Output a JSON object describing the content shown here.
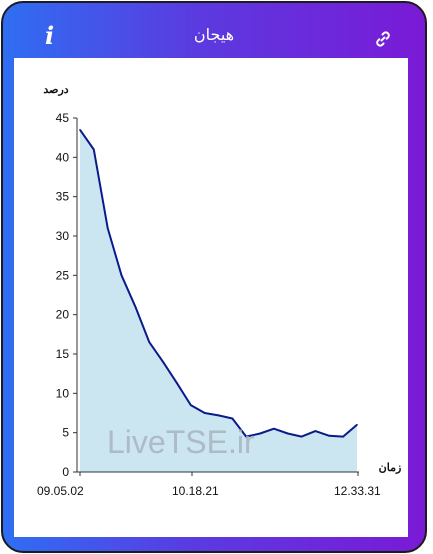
{
  "header": {
    "title": "هیجان",
    "info_icon": "info-icon",
    "link_icon": "link-icon",
    "info_glyph": "i"
  },
  "colors": {
    "line": "#0b1a8a",
    "fill": "#cbe6f0",
    "watermark": "#a9b3c1"
  },
  "watermark": "LiveTSE.ir",
  "chart_data": {
    "type": "area",
    "ylabel": "درصد",
    "xlabel": "زمان",
    "ylim": [
      0,
      45
    ],
    "yticks": [
      0,
      5,
      10,
      15,
      20,
      25,
      30,
      35,
      40,
      45
    ],
    "xlabels": [
      "09.05.02",
      "10.18.21",
      "12.33.31"
    ],
    "x": [
      0,
      0.05,
      0.1,
      0.15,
      0.2,
      0.25,
      0.3,
      0.35,
      0.4,
      0.45,
      0.5,
      0.55,
      0.6,
      0.65,
      0.7,
      0.75,
      0.8,
      0.85,
      0.9,
      0.95,
      1.0
    ],
    "values": [
      43.5,
      41,
      31,
      25,
      21,
      16.5,
      14,
      11.3,
      8.5,
      7.5,
      7.2,
      6.8,
      4.5,
      4.9,
      5.5,
      4.9,
      4.5,
      5.2,
      4.6,
      4.5,
      6
    ]
  }
}
